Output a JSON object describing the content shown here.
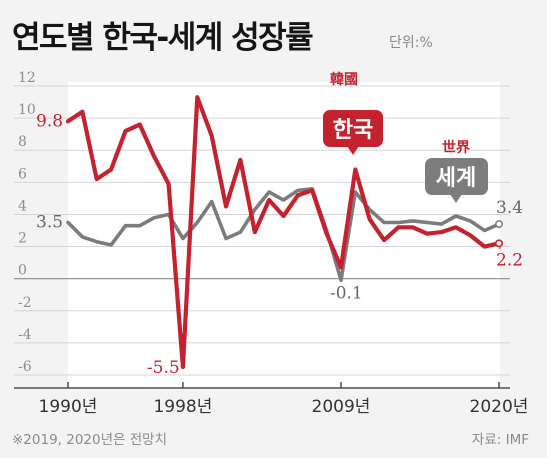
{
  "header": {
    "title": "연도별 한국-세계 성장률",
    "unit": "단위:%"
  },
  "footer": {
    "note": "※2019, 2020년은 전망치",
    "source": "자료: IMF"
  },
  "colors": {
    "korea": "#c5222f",
    "world": "#7c7c7c",
    "background": "#f3f3f3",
    "plot": "#ffffff"
  },
  "labels": {
    "korea_small": "韓國",
    "korea_tag": "한국",
    "world_small": "世界",
    "world_tag": "세계"
  },
  "chart_data": {
    "type": "line",
    "ylim": [
      -6,
      12
    ],
    "yticks": [
      "12",
      "10",
      "8",
      "6",
      "4",
      "2",
      "0",
      "-2",
      "-4",
      "-6"
    ],
    "ytick_values": [
      12,
      10,
      8,
      6,
      4,
      2,
      0,
      -2,
      -4,
      -6
    ],
    "xlim": [
      1990,
      2020
    ],
    "xtick_values": [
      1990,
      1998,
      2009,
      2020
    ],
    "xticks": [
      "1990년",
      "1998년",
      "2009년",
      "2020년"
    ],
    "x": [
      1990,
      1991,
      1992,
      1993,
      1994,
      1995,
      1996,
      1997,
      1998,
      1999,
      2000,
      2001,
      2002,
      2003,
      2004,
      2005,
      2006,
      2007,
      2008,
      2009,
      2010,
      2011,
      2012,
      2013,
      2014,
      2015,
      2016,
      2017,
      2018,
      2019,
      2020
    ],
    "series": [
      {
        "name": "한국",
        "key": "korea",
        "values": [
          9.8,
          10.4,
          6.2,
          6.8,
          9.2,
          9.6,
          7.6,
          5.9,
          -5.5,
          11.3,
          8.9,
          4.5,
          7.4,
          2.9,
          4.9,
          3.9,
          5.2,
          5.5,
          2.8,
          0.7,
          6.8,
          3.7,
          2.4,
          3.2,
          3.2,
          2.8,
          2.9,
          3.2,
          2.7,
          2.0,
          2.2
        ]
      },
      {
        "name": "세계",
        "key": "world",
        "values": [
          3.5,
          2.6,
          2.3,
          2.1,
          3.3,
          3.3,
          3.8,
          4.0,
          2.5,
          3.5,
          4.8,
          2.5,
          2.9,
          4.3,
          5.4,
          4.9,
          5.5,
          5.6,
          3.0,
          -0.1,
          5.4,
          4.3,
          3.5,
          3.5,
          3.6,
          3.5,
          3.4,
          3.9,
          3.6,
          3.0,
          3.4
        ]
      }
    ],
    "annotations": [
      {
        "text": "9.8",
        "series": "korea",
        "year": 1990
      },
      {
        "text": "3.5",
        "series": "world",
        "year": 1990
      },
      {
        "text": "-5.5",
        "series": "korea",
        "year": 1998
      },
      {
        "text": "-0.1",
        "series": "world",
        "year": 2009
      },
      {
        "text": "3.4",
        "series": "world",
        "year": 2020
      },
      {
        "text": "2.2",
        "series": "korea",
        "year": 2020
      }
    ]
  }
}
